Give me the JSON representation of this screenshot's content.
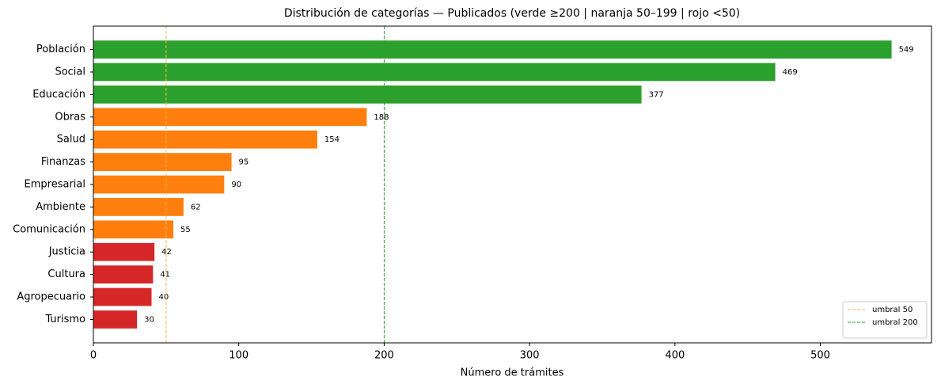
{
  "chart_data": {
    "type": "barh",
    "title": "Distribución de categorías — Publicados (verde ≥200 | naranja 50–199 | rojo <50)",
    "xlabel": "Número de trámites",
    "categories": [
      "Población",
      "Social",
      "Educación",
      "Obras",
      "Salud",
      "Finanzas",
      "Empresarial",
      "Ambiente",
      "Comunicación",
      "Justicia",
      "Cultura",
      "Agropecuario",
      "Turismo"
    ],
    "values": [
      549,
      469,
      377,
      188,
      154,
      95,
      90,
      62,
      55,
      42,
      41,
      40,
      30
    ],
    "colors": [
      "#2ca02c",
      "#2ca02c",
      "#2ca02c",
      "#ff7f0e",
      "#ff7f0e",
      "#ff7f0e",
      "#ff7f0e",
      "#ff7f0e",
      "#ff7f0e",
      "#d62728",
      "#d62728",
      "#d62728",
      "#d62728"
    ],
    "xlim": [
      0,
      576.45
    ],
    "xticks": [
      0,
      100,
      200,
      300,
      400,
      500
    ],
    "reference_lines": [
      {
        "name": "umbral 50",
        "value": 50,
        "color": "#f7b54a"
      },
      {
        "name": "umbral 200",
        "value": 200,
        "color": "#2ca02c"
      }
    ],
    "legend": "lower right"
  }
}
